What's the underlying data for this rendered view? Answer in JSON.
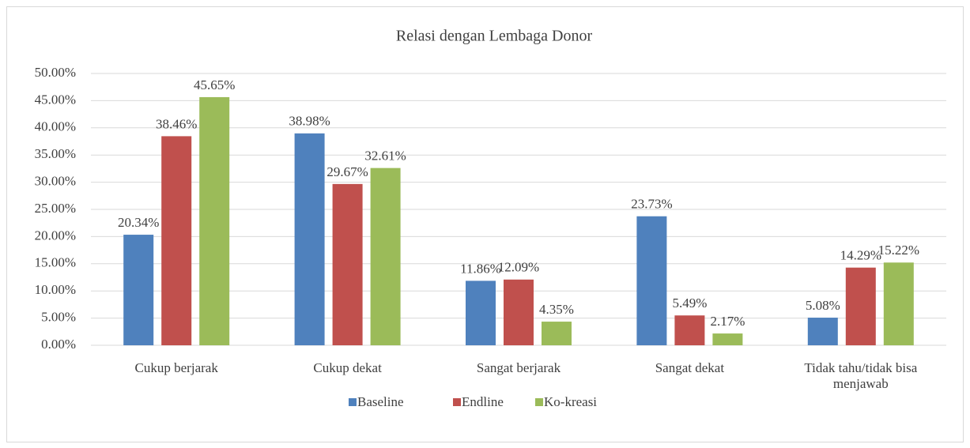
{
  "chart_data": {
    "type": "bar",
    "title": "Relasi dengan Lembaga Donor",
    "categories": [
      "Cukup berjarak",
      "Cukup dekat",
      "Sangat berjarak",
      "Sangat dekat",
      "Tidak tahu/tidak bisa menjawab"
    ],
    "series": [
      {
        "name": "Baseline",
        "color": "#4f81bd",
        "values": [
          20.34,
          38.98,
          11.86,
          23.73,
          5.08
        ],
        "value_labels": [
          "20.34%",
          "38.98%",
          "11.86%",
          "23.73%",
          "5.08%"
        ]
      },
      {
        "name": "Endline",
        "color": "#c0504d",
        "values": [
          38.46,
          29.67,
          12.09,
          5.49,
          14.29
        ],
        "value_labels": [
          "38.46%",
          "29.67%",
          "12.09%",
          "5.49%",
          "14.29%"
        ]
      },
      {
        "name": "Ko-kreasi",
        "color": "#9bbb59",
        "values": [
          45.65,
          32.61,
          4.35,
          2.17,
          15.22
        ],
        "value_labels": [
          "45.65%",
          "32.61%",
          "4.35%",
          "2.17%",
          "15.22%"
        ]
      }
    ],
    "ylim": [
      0,
      50
    ],
    "yticks": [
      {
        "value": 0,
        "label": "0.00%"
      },
      {
        "value": 5,
        "label": "5.00%"
      },
      {
        "value": 10,
        "label": "10.00%"
      },
      {
        "value": 15,
        "label": "15.00%"
      },
      {
        "value": 20,
        "label": "20.00%"
      },
      {
        "value": 25,
        "label": "25.00%"
      },
      {
        "value": 30,
        "label": "30.00%"
      },
      {
        "value": 35,
        "label": "35.00%"
      },
      {
        "value": 40,
        "label": "40.00%"
      },
      {
        "value": 45,
        "label": "45.00%"
      },
      {
        "value": 50,
        "label": "50.00%"
      }
    ],
    "grid": true,
    "legend": "bottom"
  }
}
